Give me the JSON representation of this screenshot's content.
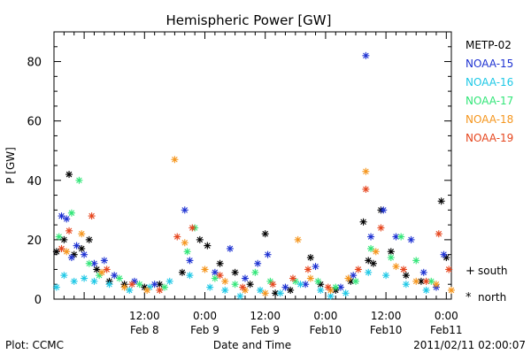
{
  "chart_data": {
    "type": "scatter",
    "title": "Hemispheric Power [GW]",
    "ylabel": "P [GW]",
    "xlabel": "Date and Time",
    "ylim": [
      0,
      90
    ],
    "xlim": [
      "2011-02-07 18:00",
      "2011-02-11 01:00"
    ],
    "y_ticks": [
      0,
      20,
      40,
      60,
      80
    ],
    "x_ticks": [
      {
        "t": "2011-02-08 12:00",
        "time": "12:00",
        "date": "Feb 8"
      },
      {
        "t": "2011-02-09 00:00",
        "time": "0:00",
        "date": "Feb 9"
      },
      {
        "t": "2011-02-09 12:00",
        "time": "12:00",
        "date": "Feb 9"
      },
      {
        "t": "2011-02-10 00:00",
        "time": "0:00",
        "date": "Feb10"
      },
      {
        "t": "2011-02-10 12:00",
        "time": "12:00",
        "date": "Feb10"
      },
      {
        "t": "2011-02-11 00:00",
        "time": "0:00",
        "date": "Feb11"
      }
    ],
    "marker_legend": [
      {
        "symbol": "+",
        "label": "south"
      },
      {
        "symbol": "*",
        "label": "north"
      }
    ],
    "series": [
      {
        "name": "METP-02",
        "color": "#000000",
        "points": [
          {
            "x": "2011-02-07 18:30",
            "y": 16
          },
          {
            "x": "2011-02-07 20:00",
            "y": 20
          },
          {
            "x": "2011-02-07 21:00",
            "y": 42
          },
          {
            "x": "2011-02-07 22:00",
            "y": 15
          },
          {
            "x": "2011-02-07 23:30",
            "y": 17
          },
          {
            "x": "2011-02-08 01:00",
            "y": 20
          },
          {
            "x": "2011-02-08 02:30",
            "y": 10
          },
          {
            "x": "2011-02-08 05:00",
            "y": 6
          },
          {
            "x": "2011-02-08 08:00",
            "y": 5
          },
          {
            "x": "2011-02-08 12:00",
            "y": 4
          },
          {
            "x": "2011-02-08 15:00",
            "y": 5
          },
          {
            "x": "2011-02-08 19:30",
            "y": 9
          },
          {
            "x": "2011-02-08 23:00",
            "y": 20
          },
          {
            "x": "2011-02-09 00:30",
            "y": 18
          },
          {
            "x": "2011-02-09 03:00",
            "y": 12
          },
          {
            "x": "2011-02-09 06:00",
            "y": 9
          },
          {
            "x": "2011-02-09 09:00",
            "y": 5
          },
          {
            "x": "2011-02-09 12:00",
            "y": 22
          },
          {
            "x": "2011-02-09 14:00",
            "y": 2
          },
          {
            "x": "2011-02-09 17:00",
            "y": 3
          },
          {
            "x": "2011-02-09 21:00",
            "y": 14
          },
          {
            "x": "2011-02-09 23:00",
            "y": 5
          },
          {
            "x": "2011-02-10 02:00",
            "y": 3
          },
          {
            "x": "2011-02-10 05:00",
            "y": 6
          },
          {
            "x": "2011-02-10 07:30",
            "y": 26
          },
          {
            "x": "2011-02-10 08:30",
            "y": 13
          },
          {
            "x": "2011-02-10 09:30",
            "y": 12
          },
          {
            "x": "2011-02-10 11:00",
            "y": 30
          },
          {
            "x": "2011-02-10 13:00",
            "y": 16
          },
          {
            "x": "2011-02-10 16:00",
            "y": 8
          },
          {
            "x": "2011-02-10 19:00",
            "y": 6
          },
          {
            "x": "2011-02-10 23:00",
            "y": 33
          },
          {
            "x": "2011-02-11 00:00",
            "y": 14
          }
        ]
      },
      {
        "name": "NOAA-15",
        "color": "#1e32d2",
        "points": [
          {
            "x": "2011-02-07 19:30",
            "y": 28
          },
          {
            "x": "2011-02-07 20:30",
            "y": 27
          },
          {
            "x": "2011-02-07 21:30",
            "y": 14
          },
          {
            "x": "2011-02-07 22:30",
            "y": 18
          },
          {
            "x": "2011-02-08 00:00",
            "y": 15
          },
          {
            "x": "2011-02-08 02:00",
            "y": 12
          },
          {
            "x": "2011-02-08 04:00",
            "y": 13
          },
          {
            "x": "2011-02-08 06:00",
            "y": 8
          },
          {
            "x": "2011-02-08 10:00",
            "y": 6
          },
          {
            "x": "2011-02-08 14:00",
            "y": 5
          },
          {
            "x": "2011-02-08 20:00",
            "y": 30
          },
          {
            "x": "2011-02-08 21:00",
            "y": 13
          },
          {
            "x": "2011-02-09 02:00",
            "y": 9
          },
          {
            "x": "2011-02-09 05:00",
            "y": 17
          },
          {
            "x": "2011-02-09 08:00",
            "y": 7
          },
          {
            "x": "2011-02-09 10:30",
            "y": 12
          },
          {
            "x": "2011-02-09 12:30",
            "y": 15
          },
          {
            "x": "2011-02-09 16:00",
            "y": 4
          },
          {
            "x": "2011-02-09 20:00",
            "y": 5
          },
          {
            "x": "2011-02-09 22:00",
            "y": 11
          },
          {
            "x": "2011-02-10 03:00",
            "y": 4
          },
          {
            "x": "2011-02-10 05:30",
            "y": 8
          },
          {
            "x": "2011-02-10 08:00",
            "y": 82
          },
          {
            "x": "2011-02-10 09:00",
            "y": 21
          },
          {
            "x": "2011-02-10 11:30",
            "y": 30
          },
          {
            "x": "2011-02-10 14:00",
            "y": 21
          },
          {
            "x": "2011-02-10 17:00",
            "y": 20
          },
          {
            "x": "2011-02-10 19:30",
            "y": 9
          },
          {
            "x": "2011-02-10 22:00",
            "y": 4
          },
          {
            "x": "2011-02-10 23:30",
            "y": 15
          }
        ]
      },
      {
        "name": "NOAA-16",
        "color": "#1ec8e6",
        "points": [
          {
            "x": "2011-02-07 18:30",
            "y": 4
          },
          {
            "x": "2011-02-07 20:00",
            "y": 8
          },
          {
            "x": "2011-02-07 22:00",
            "y": 6
          },
          {
            "x": "2011-02-08 00:00",
            "y": 7
          },
          {
            "x": "2011-02-08 02:00",
            "y": 6
          },
          {
            "x": "2011-02-08 05:00",
            "y": 5
          },
          {
            "x": "2011-02-08 09:00",
            "y": 3
          },
          {
            "x": "2011-02-08 13:00",
            "y": 4
          },
          {
            "x": "2011-02-08 17:00",
            "y": 6
          },
          {
            "x": "2011-02-08 21:00",
            "y": 8
          },
          {
            "x": "2011-02-09 01:00",
            "y": 4
          },
          {
            "x": "2011-02-09 04:00",
            "y": 3
          },
          {
            "x": "2011-02-09 07:00",
            "y": 1
          },
          {
            "x": "2011-02-09 11:00",
            "y": 3
          },
          {
            "x": "2011-02-09 15:00",
            "y": 2
          },
          {
            "x": "2011-02-09 19:00",
            "y": 5
          },
          {
            "x": "2011-02-09 23:00",
            "y": 3
          },
          {
            "x": "2011-02-10 01:00",
            "y": 1
          },
          {
            "x": "2011-02-10 04:00",
            "y": 2
          },
          {
            "x": "2011-02-10 08:30",
            "y": 9
          },
          {
            "x": "2011-02-10 12:00",
            "y": 8
          },
          {
            "x": "2011-02-10 16:00",
            "y": 5
          },
          {
            "x": "2011-02-10 20:00",
            "y": 3
          }
        ]
      },
      {
        "name": "NOAA-17",
        "color": "#32e678",
        "points": [
          {
            "x": "2011-02-07 19:00",
            "y": 21
          },
          {
            "x": "2011-02-07 21:30",
            "y": 29
          },
          {
            "x": "2011-02-07 23:00",
            "y": 40
          },
          {
            "x": "2011-02-08 01:00",
            "y": 12
          },
          {
            "x": "2011-02-08 03:00",
            "y": 8
          },
          {
            "x": "2011-02-08 07:00",
            "y": 7
          },
          {
            "x": "2011-02-08 11:00",
            "y": 5
          },
          {
            "x": "2011-02-08 16:00",
            "y": 4
          },
          {
            "x": "2011-02-08 20:30",
            "y": 16
          },
          {
            "x": "2011-02-08 22:00",
            "y": 24
          },
          {
            "x": "2011-02-09 02:00",
            "y": 7
          },
          {
            "x": "2011-02-09 06:00",
            "y": 5
          },
          {
            "x": "2011-02-09 10:00",
            "y": 9
          },
          {
            "x": "2011-02-09 13:00",
            "y": 6
          },
          {
            "x": "2011-02-09 18:00",
            "y": 6
          },
          {
            "x": "2011-02-09 22:30",
            "y": 6
          },
          {
            "x": "2011-02-10 02:00",
            "y": 4
          },
          {
            "x": "2011-02-10 06:00",
            "y": 6
          },
          {
            "x": "2011-02-10 09:00",
            "y": 17
          },
          {
            "x": "2011-02-10 13:00",
            "y": 14
          },
          {
            "x": "2011-02-10 15:00",
            "y": 21
          },
          {
            "x": "2011-02-10 18:00",
            "y": 13
          },
          {
            "x": "2011-02-10 21:00",
            "y": 6
          }
        ]
      },
      {
        "name": "NOAA-18",
        "color": "#f5961e",
        "points": [
          {
            "x": "2011-02-07 20:30",
            "y": 16
          },
          {
            "x": "2011-02-07 23:30",
            "y": 22
          },
          {
            "x": "2011-02-08 03:30",
            "y": 9
          },
          {
            "x": "2011-02-08 08:00",
            "y": 4
          },
          {
            "x": "2011-02-08 12:30",
            "y": 3
          },
          {
            "x": "2011-02-08 18:00",
            "y": 47
          },
          {
            "x": "2011-02-08 20:00",
            "y": 19
          },
          {
            "x": "2011-02-09 00:00",
            "y": 10
          },
          {
            "x": "2011-02-09 04:00",
            "y": 6
          },
          {
            "x": "2011-02-09 08:00",
            "y": 3
          },
          {
            "x": "2011-02-09 12:00",
            "y": 2
          },
          {
            "x": "2011-02-09 18:30",
            "y": 20
          },
          {
            "x": "2011-02-09 21:00",
            "y": 7
          },
          {
            "x": "2011-02-10 01:00",
            "y": 3
          },
          {
            "x": "2011-02-10 04:30",
            "y": 7
          },
          {
            "x": "2011-02-10 08:00",
            "y": 43
          },
          {
            "x": "2011-02-10 10:00",
            "y": 16
          },
          {
            "x": "2011-02-10 14:00",
            "y": 11
          },
          {
            "x": "2011-02-10 18:00",
            "y": 6
          },
          {
            "x": "2011-02-10 22:00",
            "y": 5
          },
          {
            "x": "2011-02-11 01:00",
            "y": 3
          }
        ]
      },
      {
        "name": "NOAA-19",
        "color": "#e6461e",
        "points": [
          {
            "x": "2011-02-07 19:30",
            "y": 17
          },
          {
            "x": "2011-02-07 21:00",
            "y": 23
          },
          {
            "x": "2011-02-08 01:30",
            "y": 28
          },
          {
            "x": "2011-02-08 04:30",
            "y": 10
          },
          {
            "x": "2011-02-08 09:30",
            "y": 5
          },
          {
            "x": "2011-02-08 15:00",
            "y": 3
          },
          {
            "x": "2011-02-08 18:30",
            "y": 21
          },
          {
            "x": "2011-02-08 21:30",
            "y": 24
          },
          {
            "x": "2011-02-09 03:00",
            "y": 8
          },
          {
            "x": "2011-02-09 07:30",
            "y": 4
          },
          {
            "x": "2011-02-09 13:30",
            "y": 5
          },
          {
            "x": "2011-02-09 17:30",
            "y": 7
          },
          {
            "x": "2011-02-09 20:30",
            "y": 10
          },
          {
            "x": "2011-02-10 00:30",
            "y": 4
          },
          {
            "x": "2011-02-10 06:30",
            "y": 10
          },
          {
            "x": "2011-02-10 08:00",
            "y": 37
          },
          {
            "x": "2011-02-10 11:00",
            "y": 24
          },
          {
            "x": "2011-02-10 15:30",
            "y": 10
          },
          {
            "x": "2011-02-10 20:00",
            "y": 6
          },
          {
            "x": "2011-02-10 22:30",
            "y": 22
          },
          {
            "x": "2011-02-11 00:30",
            "y": 10
          }
        ]
      }
    ]
  },
  "footer": {
    "left": "Plot: CCMC",
    "timestamp": "2011/02/11 02:00:07"
  }
}
